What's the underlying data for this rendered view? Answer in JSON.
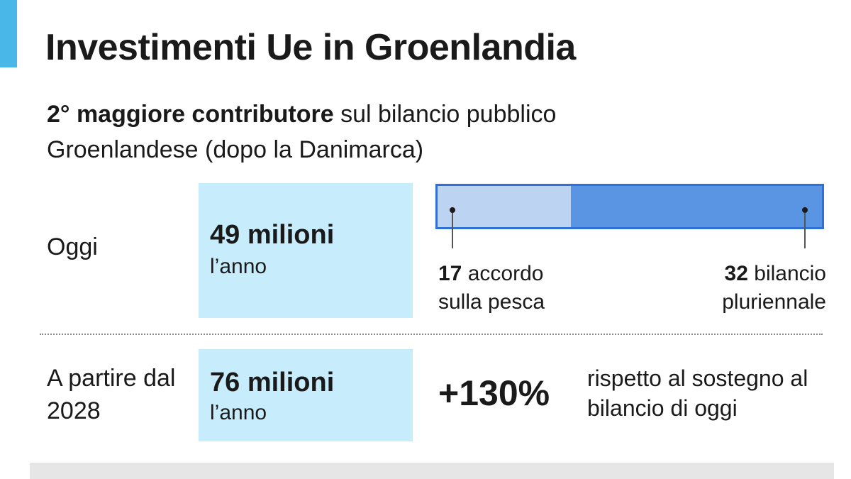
{
  "header": {
    "title": "Investimenti Ue in Groenlandia",
    "subtitle_bold": "2° maggiore contributore",
    "subtitle_rest": " sul bilancio pubblico Groenlandese (dopo la Danimarca)"
  },
  "rows": [
    {
      "label": "Oggi",
      "amount": "49 milioni",
      "unit": "l’anno"
    },
    {
      "label": "A partire dal 2028",
      "amount": "76 milioni",
      "unit": "l’anno"
    }
  ],
  "breakdown": {
    "fishing_value": "17",
    "fishing_text": " accordo sulla pesca",
    "budget_value": "32",
    "budget_text": " bilancio pluriennale"
  },
  "comparison": {
    "percent": "+130%",
    "note": "rispetto al sostegno al bilancio di oggi"
  },
  "colors": {
    "accent": "#49b8e8",
    "value_box": "#c7ecfb",
    "segment_fishing": "#bcd3f1",
    "segment_budget": "#5a95e3",
    "segment_border": "#2f6fd6"
  },
  "chart_data": {
    "type": "bar",
    "orientation": "horizontal-stacked",
    "total": 49,
    "categories": [
      "Oggi"
    ],
    "series": [
      {
        "name": "accordo sulla pesca",
        "values": [
          17
        ]
      },
      {
        "name": "bilancio pluriennale",
        "values": [
          32
        ]
      }
    ],
    "xlim": [
      0,
      49
    ],
    "grid": false
  }
}
